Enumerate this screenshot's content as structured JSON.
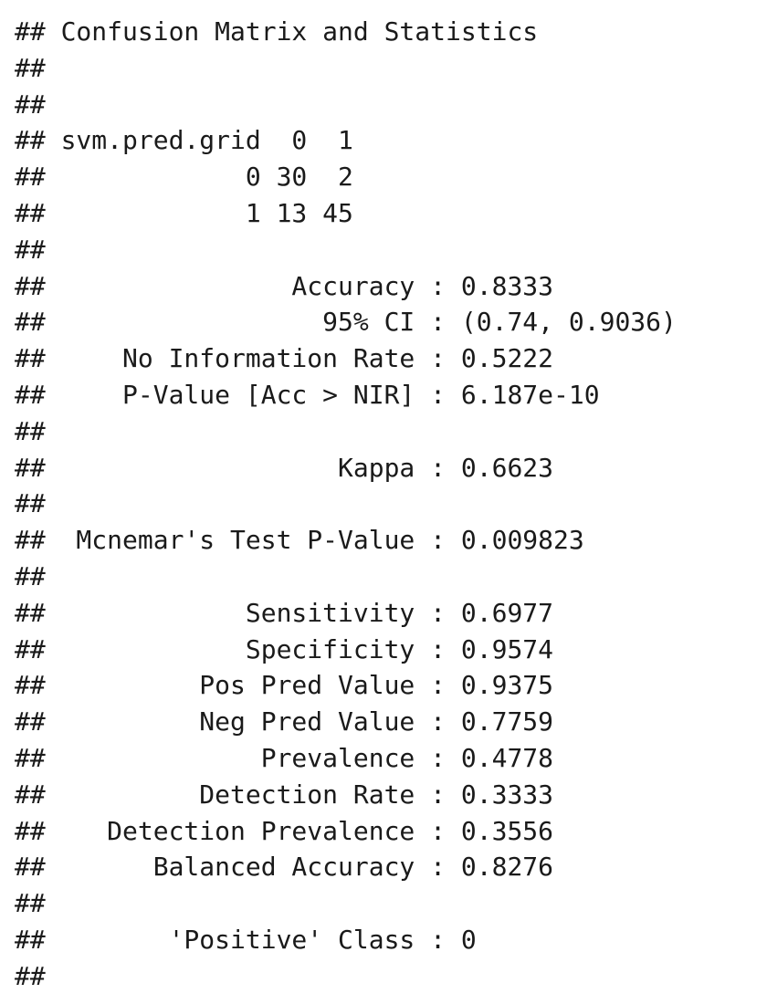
{
  "output": {
    "lines": [
      "## Confusion Matrix and Statistics",
      "##",
      "##",
      "## svm.pred.grid  0  1",
      "##             0 30  2",
      "##             1 13 45",
      "##",
      "##                Accuracy : 0.8333",
      "##                  95% CI : (0.74, 0.9036)",
      "##     No Information Rate : 0.5222",
      "##     P-Value [Acc > NIR] : 6.187e-10",
      "##",
      "##                   Kappa : 0.6623",
      "##",
      "##  Mcnemar's Test P-Value : 0.009823",
      "##",
      "##             Sensitivity : 0.6977",
      "##             Specificity : 0.9574",
      "##          Pos Pred Value : 0.9375",
      "##          Neg Pred Value : 0.7759",
      "##              Prevalence : 0.4778",
      "##          Detection Rate : 0.3333",
      "##    Detection Prevalence : 0.3556",
      "##       Balanced Accuracy : 0.8276",
      "##",
      "##        'Positive' Class : 0",
      "##"
    ]
  }
}
